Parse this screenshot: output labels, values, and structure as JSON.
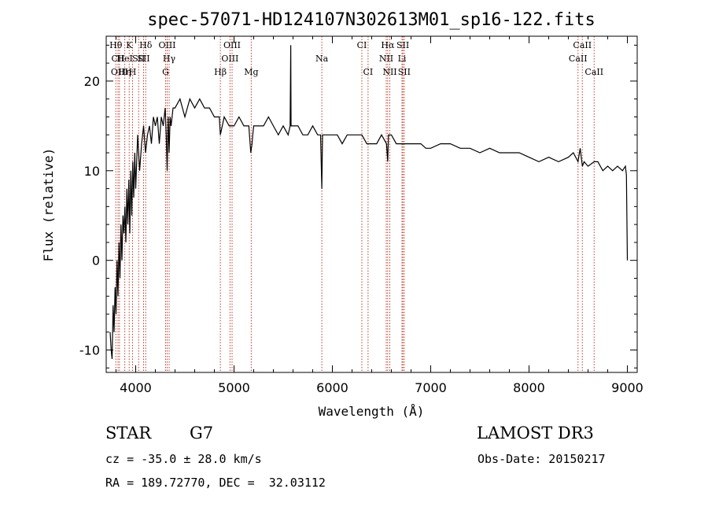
{
  "chart_data": {
    "type": "line",
    "title": "spec-57071-HD124107N302613M01_sp16-122.fits",
    "xlabel": "Wavelength (Å)",
    "ylabel": "Flux (relative)",
    "xlim": [
      3700,
      9100
    ],
    "ylim": [
      -12.5,
      25
    ],
    "xticks": [
      4000,
      5000,
      6000,
      7000,
      8000,
      9000
    ],
    "yticks": [
      -10,
      0,
      10,
      20
    ],
    "grid": false,
    "series": [
      {
        "x": [
          3740,
          3750,
          3760,
          3770,
          3780,
          3790,
          3800,
          3810,
          3820,
          3830,
          3840,
          3850,
          3860,
          3870,
          3880,
          3890,
          3900,
          3910,
          3920,
          3930,
          3940,
          3950,
          3960,
          3970,
          3980,
          3990,
          4000,
          4020,
          4040,
          4060,
          4080,
          4100,
          4120,
          4140,
          4160,
          4180,
          4200,
          4220,
          4240,
          4260,
          4280,
          4300,
          4310,
          4320,
          4330,
          4340,
          4350,
          4360,
          4380,
          4400,
          4450,
          4500,
          4550,
          4600,
          4650,
          4700,
          4750,
          4800,
          4850,
          4861,
          4900,
          4950,
          5000,
          5050,
          5100,
          5150,
          5170,
          5183,
          5190,
          5200,
          5250,
          5300,
          5350,
          5400,
          5450,
          5500,
          5550,
          5570,
          5577,
          5580,
          5600,
          5650,
          5700,
          5750,
          5800,
          5850,
          5880,
          5893,
          5900,
          5950,
          6000,
          6050,
          6100,
          6150,
          6200,
          6250,
          6300,
          6350,
          6400,
          6450,
          6500,
          6550,
          6563,
          6570,
          6600,
          6650,
          6700,
          6750,
          6800,
          6850,
          6900,
          6950,
          7000,
          7100,
          7200,
          7300,
          7400,
          7500,
          7600,
          7700,
          7800,
          7900,
          8000,
          8100,
          8200,
          8300,
          8400,
          8450,
          8498,
          8520,
          8542,
          8560,
          8600,
          8662,
          8700,
          8750,
          8800,
          8850,
          8900,
          8950,
          8980,
          8990,
          9000
        ],
        "y": [
          -8,
          -10,
          -11,
          -5,
          -8,
          -3,
          -6,
          0,
          -4,
          2,
          -2,
          4,
          0,
          5,
          3,
          6,
          2,
          8,
          4,
          9,
          3,
          10,
          5,
          11,
          7,
          12,
          8,
          14,
          10,
          13,
          15,
          12,
          14,
          15,
          13,
          16,
          15,
          16,
          13,
          16,
          15,
          17,
          14,
          10,
          16,
          12,
          16,
          15,
          17,
          17,
          18,
          16,
          18,
          17,
          18,
          17,
          17,
          16,
          16,
          14,
          16,
          15,
          15,
          16,
          15,
          15,
          12,
          13,
          14,
          15,
          15,
          15,
          16,
          15,
          14,
          15,
          14,
          15,
          24,
          15,
          15,
          15,
          14,
          14,
          15,
          14,
          14,
          8,
          14,
          14,
          14,
          14,
          13,
          14,
          14,
          14,
          14,
          13,
          13,
          13,
          14,
          13,
          11,
          14,
          14,
          13,
          13,
          13,
          13,
          13,
          13,
          12.5,
          12.5,
          13,
          13,
          12.5,
          12.5,
          12,
          12.5,
          12,
          12,
          12,
          11.5,
          11,
          11.5,
          11,
          11.5,
          12,
          11,
          12.5,
          10.5,
          11,
          10.5,
          11,
          11,
          10,
          10.5,
          10,
          10.5,
          10,
          10.5,
          9.5,
          0
        ]
      }
    ],
    "spectral_lines": [
      {
        "label": "Hθ",
        "x": 3798,
        "row": 1
      },
      {
        "label": "CII",
        "x": 3820,
        "row": 2
      },
      {
        "label": "OIII",
        "x": 3835,
        "row": 3
      },
      {
        "label": "K",
        "x": 3934,
        "row": 1
      },
      {
        "label": "HeI",
        "x": 3889,
        "row": 2
      },
      {
        "label": "Hη",
        "x": 3889,
        "row": 3
      },
      {
        "label": "SII",
        "x": 4030,
        "row": 2
      },
      {
        "label": "H",
        "x": 3968,
        "row": 3
      },
      {
        "label": "Hδ",
        "x": 4102,
        "row": 1
      },
      {
        "label": "SII",
        "x": 4080,
        "row": 2
      },
      {
        "label": "OIII",
        "x": 4320,
        "row": 1
      },
      {
        "label": "Hγ",
        "x": 4340,
        "row": 2
      },
      {
        "label": "G",
        "x": 4304,
        "row": 3
      },
      {
        "label": "OIII",
        "x": 4980,
        "row": 1
      },
      {
        "label": "OIII",
        "x": 4959,
        "row": 2
      },
      {
        "label": "Hβ",
        "x": 4861,
        "row": 3
      },
      {
        "label": "Mg",
        "x": 5175,
        "row": 3
      },
      {
        "label": "Na",
        "x": 5893,
        "row": 2
      },
      {
        "label": "CI",
        "x": 6300,
        "row": 1
      },
      {
        "label": "CI",
        "x": 6363,
        "row": 3
      },
      {
        "label": "Hα",
        "x": 6563,
        "row": 1
      },
      {
        "label": "SII",
        "x": 6717,
        "row": 1
      },
      {
        "label": "NII",
        "x": 6548,
        "row": 2
      },
      {
        "label": "Li",
        "x": 6708,
        "row": 2
      },
      {
        "label": "NII",
        "x": 6584,
        "row": 3
      },
      {
        "label": "SII",
        "x": 6731,
        "row": 3
      },
      {
        "label": "CaII",
        "x": 8542,
        "row": 1
      },
      {
        "label": "CaII",
        "x": 8498,
        "row": 2
      },
      {
        "label": "CaII",
        "x": 8662,
        "row": 3
      }
    ],
    "line_markers": [
      3798,
      3820,
      3835,
      3889,
      3934,
      3968,
      4030,
      4080,
      4102,
      4304,
      4320,
      4340,
      4861,
      4959,
      4980,
      5175,
      5893,
      6300,
      6363,
      6548,
      6563,
      6584,
      6708,
      6717,
      6731,
      8498,
      8542,
      8662
    ]
  },
  "info": {
    "object_type": "STAR",
    "subclass": "G7",
    "survey": "LAMOST DR3",
    "redshift": "cz = -35.0 ± 28.0 km/s",
    "obs_date": "Obs-Date: 20150217",
    "coords": "RA = 189.72770, DEC =  32.03112"
  }
}
